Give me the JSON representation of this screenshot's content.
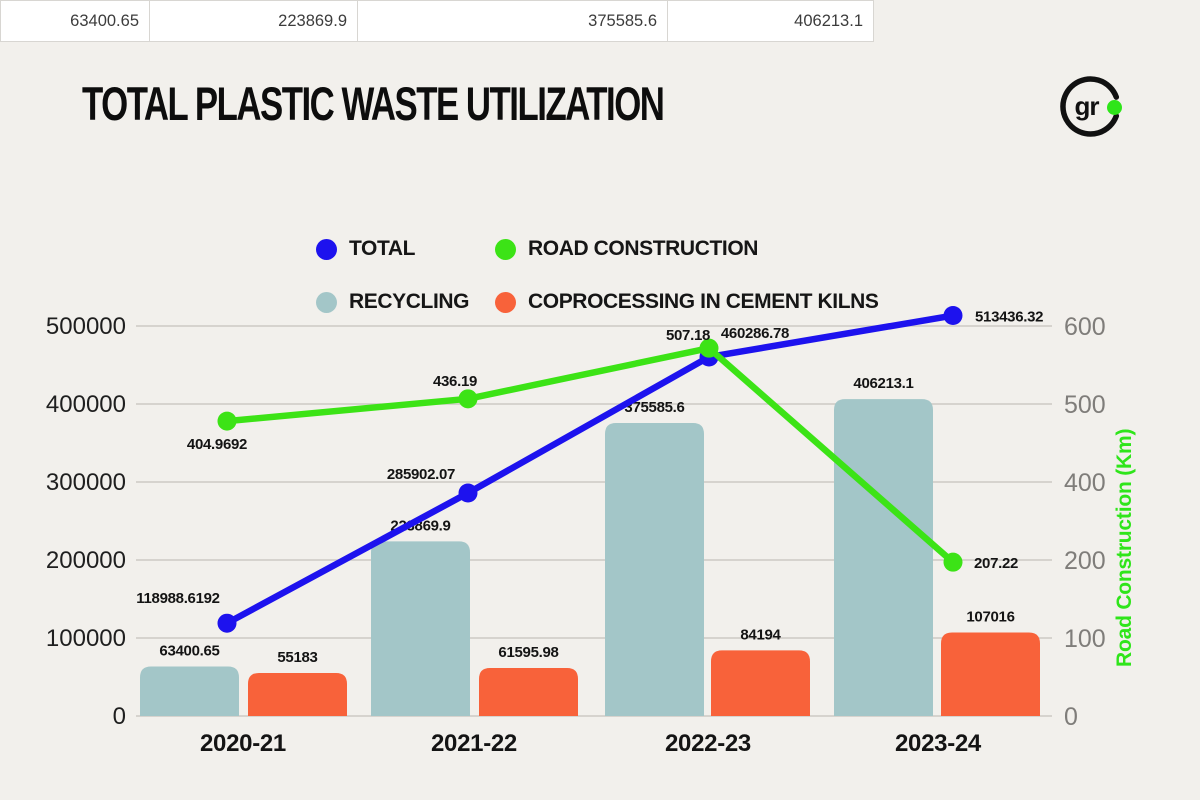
{
  "header_row": {
    "cells": [
      "63400.65",
      "223869.9",
      "375585.6",
      "406213.1"
    ]
  },
  "title": "TOTAL PLASTIC WASTE UTILIZATION",
  "logo": {
    "text": "gr",
    "ring_color": "#111111",
    "dot_color": "#2fe51a"
  },
  "legend": [
    {
      "label": "TOTAL",
      "color": "#1d12ee"
    },
    {
      "label": "ROAD CONSTRUCTION",
      "color": "#3ce316"
    },
    {
      "label": "RECYCLING",
      "color": "#a3c6c8"
    },
    {
      "label": "COPROCESSING IN CEMENT KILNS",
      "color": "#f8623a"
    }
  ],
  "chart_data": {
    "type": "combo",
    "title": "TOTAL PLASTIC WASTE UTILIZATION",
    "categories": [
      "2020-21",
      "2021-22",
      "2022-23",
      "2023-24"
    ],
    "series": [
      {
        "name": "RECYCLING",
        "type": "bar",
        "axis": "left",
        "color": "#a3c6c8",
        "values": [
          63400.65,
          223869.9,
          375585.6,
          406213.1
        ],
        "labels": [
          "63400.65",
          "223869.9",
          "375585.6",
          "406213.1"
        ]
      },
      {
        "name": "COPROCESSING IN CEMENT KILNS",
        "type": "bar",
        "axis": "left",
        "color": "#f8623a",
        "values": [
          55183,
          61595.98,
          84194,
          107016
        ],
        "labels": [
          "55183",
          "61595.98",
          "84194",
          "107016"
        ]
      },
      {
        "name": "TOTAL",
        "type": "line",
        "axis": "left",
        "color": "#1d12ee",
        "values": [
          118988.6192,
          285902.07,
          460286.78,
          513436.32
        ],
        "labels": [
          "118988.6192",
          "285902.07",
          "460286.78",
          "513436.32"
        ]
      },
      {
        "name": "ROAD CONSTRUCTION",
        "type": "line",
        "axis": "right",
        "color": "#3ce316",
        "values": [
          404.9692,
          436.19,
          507.18,
          207.22
        ],
        "labels": [
          "404.9692",
          "436.19",
          "507.18",
          "207.22"
        ]
      }
    ],
    "left_axis": {
      "min": 0,
      "max": 500000,
      "ticks": [
        "0",
        "100000",
        "200000",
        "300000",
        "400000",
        "500000"
      ]
    },
    "right_axis": {
      "title": "Road Construction (Km)",
      "color": "#2fe51a",
      "ticks": [
        "0",
        "100",
        "200",
        "400",
        "500",
        "600"
      ]
    },
    "grid": true,
    "legend_position": "top"
  }
}
